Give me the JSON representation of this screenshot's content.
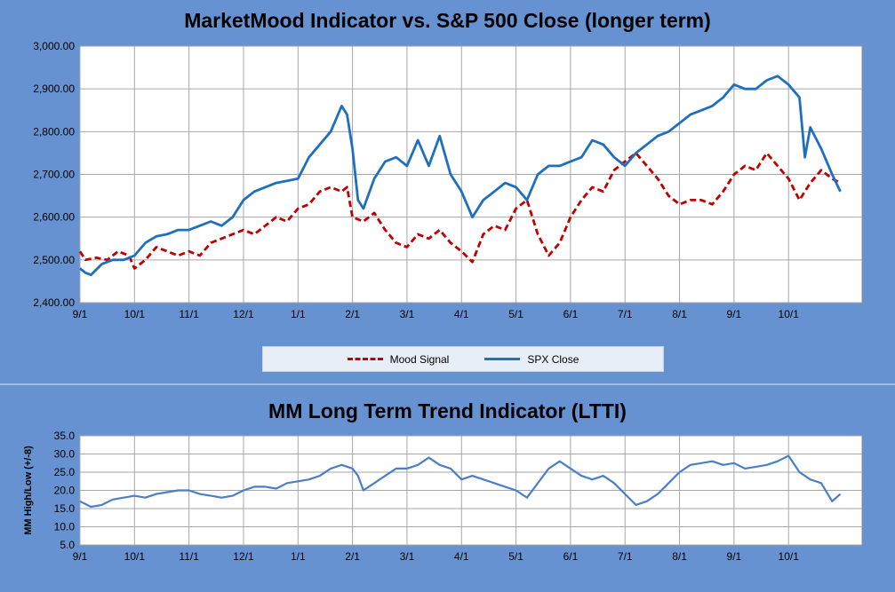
{
  "chart_data": [
    {
      "type": "line",
      "title": "MarketMood Indicator vs. S&P 500 Close (longer term)",
      "xlabel": "",
      "ylabel": "",
      "ylim": [
        2400,
        3000
      ],
      "yticks": [
        "2,400.00",
        "2,500.00",
        "2,600.00",
        "2,700.00",
        "2,800.00",
        "2,900.00",
        "3,000.00"
      ],
      "xticks": [
        "9/1",
        "10/1",
        "11/1",
        "12/1",
        "1/1",
        "2/1",
        "3/1",
        "4/1",
        "5/1",
        "6/1",
        "7/1",
        "8/1",
        "9/1",
        "10/1"
      ],
      "grid": true,
      "legend": "bottom",
      "series": [
        {
          "name": "Mood Signal",
          "color": "#c00000",
          "style": "dashed",
          "points": [
            [
              0,
              2520
            ],
            [
              0.1,
              2500
            ],
            [
              0.3,
              2505
            ],
            [
              0.5,
              2500
            ],
            [
              0.7,
              2520
            ],
            [
              0.9,
              2510
            ],
            [
              1.0,
              2480
            ],
            [
              1.1,
              2490
            ],
            [
              1.2,
              2500
            ],
            [
              1.4,
              2530
            ],
            [
              1.6,
              2520
            ],
            [
              1.8,
              2510
            ],
            [
              2.0,
              2520
            ],
            [
              2.2,
              2510
            ],
            [
              2.4,
              2540
            ],
            [
              2.6,
              2550
            ],
            [
              2.8,
              2560
            ],
            [
              3.0,
              2570
            ],
            [
              3.2,
              2560
            ],
            [
              3.4,
              2580
            ],
            [
              3.6,
              2600
            ],
            [
              3.8,
              2590
            ],
            [
              4.0,
              2620
            ],
            [
              4.2,
              2630
            ],
            [
              4.4,
              2660
            ],
            [
              4.6,
              2670
            ],
            [
              4.8,
              2660
            ],
            [
              4.9,
              2670
            ],
            [
              5.0,
              2600
            ],
            [
              5.2,
              2590
            ],
            [
              5.4,
              2610
            ],
            [
              5.6,
              2570
            ],
            [
              5.8,
              2540
            ],
            [
              6.0,
              2530
            ],
            [
              6.2,
              2560
            ],
            [
              6.4,
              2550
            ],
            [
              6.6,
              2570
            ],
            [
              6.8,
              2540
            ],
            [
              7.0,
              2520
            ],
            [
              7.2,
              2495
            ],
            [
              7.4,
              2560
            ],
            [
              7.6,
              2580
            ],
            [
              7.8,
              2570
            ],
            [
              8.0,
              2620
            ],
            [
              8.2,
              2640
            ],
            [
              8.4,
              2560
            ],
            [
              8.6,
              2510
            ],
            [
              8.8,
              2540
            ],
            [
              9.0,
              2600
            ],
            [
              9.2,
              2640
            ],
            [
              9.4,
              2670
            ],
            [
              9.6,
              2660
            ],
            [
              9.8,
              2710
            ],
            [
              10.0,
              2730
            ],
            [
              10.2,
              2750
            ],
            [
              10.4,
              2720
            ],
            [
              10.6,
              2690
            ],
            [
              10.8,
              2650
            ],
            [
              11.0,
              2630
            ],
            [
              11.2,
              2640
            ],
            [
              11.4,
              2640
            ],
            [
              11.6,
              2630
            ],
            [
              11.8,
              2660
            ],
            [
              12.0,
              2700
            ],
            [
              12.2,
              2720
            ],
            [
              12.4,
              2710
            ],
            [
              12.6,
              2750
            ],
            [
              12.8,
              2720
            ],
            [
              13.0,
              2690
            ],
            [
              13.2,
              2640
            ],
            [
              13.4,
              2680
            ],
            [
              13.6,
              2710
            ],
            [
              13.8,
              2690
            ],
            [
              13.95,
              2680
            ]
          ]
        },
        {
          "name": "SPX Close",
          "color": "#1f6fbf",
          "style": "solid",
          "points": [
            [
              0,
              2480
            ],
            [
              0.1,
              2470
            ],
            [
              0.2,
              2465
            ],
            [
              0.4,
              2490
            ],
            [
              0.6,
              2500
            ],
            [
              0.8,
              2500
            ],
            [
              1.0,
              2510
            ],
            [
              1.2,
              2540
            ],
            [
              1.4,
              2555
            ],
            [
              1.6,
              2560
            ],
            [
              1.8,
              2570
            ],
            [
              2.0,
              2570
            ],
            [
              2.2,
              2580
            ],
            [
              2.4,
              2590
            ],
            [
              2.6,
              2580
            ],
            [
              2.8,
              2600
            ],
            [
              3.0,
              2640
            ],
            [
              3.2,
              2660
            ],
            [
              3.4,
              2670
            ],
            [
              3.6,
              2680
            ],
            [
              3.8,
              2685
            ],
            [
              4.0,
              2690
            ],
            [
              4.2,
              2740
            ],
            [
              4.4,
              2770
            ],
            [
              4.6,
              2800
            ],
            [
              4.8,
              2860
            ],
            [
              4.9,
              2840
            ],
            [
              5.0,
              2760
            ],
            [
              5.1,
              2640
            ],
            [
              5.2,
              2620
            ],
            [
              5.4,
              2690
            ],
            [
              5.6,
              2730
            ],
            [
              5.8,
              2740
            ],
            [
              6.0,
              2720
            ],
            [
              6.2,
              2780
            ],
            [
              6.4,
              2720
            ],
            [
              6.6,
              2790
            ],
            [
              6.8,
              2700
            ],
            [
              7.0,
              2660
            ],
            [
              7.2,
              2600
            ],
            [
              7.4,
              2640
            ],
            [
              7.6,
              2660
            ],
            [
              7.8,
              2680
            ],
            [
              8.0,
              2670
            ],
            [
              8.2,
              2640
            ],
            [
              8.4,
              2700
            ],
            [
              8.6,
              2720
            ],
            [
              8.8,
              2720
            ],
            [
              9.0,
              2730
            ],
            [
              9.2,
              2740
            ],
            [
              9.4,
              2780
            ],
            [
              9.6,
              2770
            ],
            [
              9.8,
              2740
            ],
            [
              10.0,
              2720
            ],
            [
              10.2,
              2750
            ],
            [
              10.4,
              2770
            ],
            [
              10.6,
              2790
            ],
            [
              10.8,
              2800
            ],
            [
              11.0,
              2820
            ],
            [
              11.2,
              2840
            ],
            [
              11.4,
              2850
            ],
            [
              11.6,
              2860
            ],
            [
              11.8,
              2880
            ],
            [
              12.0,
              2910
            ],
            [
              12.2,
              2900
            ],
            [
              12.4,
              2900
            ],
            [
              12.6,
              2920
            ],
            [
              12.8,
              2930
            ],
            [
              13.0,
              2910
            ],
            [
              13.2,
              2880
            ],
            [
              13.3,
              2740
            ],
            [
              13.4,
              2810
            ],
            [
              13.6,
              2760
            ],
            [
              13.8,
              2700
            ],
            [
              13.95,
              2660
            ]
          ]
        }
      ]
    },
    {
      "type": "line",
      "title": "MM Long Term Trend Indicator (LTTI)",
      "xlabel": "",
      "ylabel": "MM High/Low (+/-8)",
      "ylim": [
        5,
        35
      ],
      "yticks": [
        "5.0",
        "10.0",
        "15.0",
        "20.0",
        "25.0",
        "30.0",
        "35.0"
      ],
      "xticks": [
        "9/1",
        "10/1",
        "11/1",
        "12/1",
        "1/1",
        "2/1",
        "3/1",
        "4/1",
        "5/1",
        "6/1",
        "7/1",
        "8/1",
        "9/1",
        "10/1"
      ],
      "grid": true,
      "series": [
        {
          "color": "#4a7fc8",
          "style": "solid",
          "points": [
            [
              0,
              17
            ],
            [
              0.2,
              15.5
            ],
            [
              0.4,
              16
            ],
            [
              0.6,
              17.5
            ],
            [
              0.8,
              18
            ],
            [
              1.0,
              18.5
            ],
            [
              1.2,
              18
            ],
            [
              1.4,
              19
            ],
            [
              1.6,
              19.5
            ],
            [
              1.8,
              20
            ],
            [
              2.0,
              20
            ],
            [
              2.2,
              19
            ],
            [
              2.4,
              18.5
            ],
            [
              2.6,
              18
            ],
            [
              2.8,
              18.5
            ],
            [
              3.0,
              20
            ],
            [
              3.2,
              21
            ],
            [
              3.4,
              21
            ],
            [
              3.6,
              20.5
            ],
            [
              3.8,
              22
            ],
            [
              4.0,
              22.5
            ],
            [
              4.2,
              23
            ],
            [
              4.4,
              24
            ],
            [
              4.6,
              26
            ],
            [
              4.8,
              27
            ],
            [
              5.0,
              26
            ],
            [
              5.1,
              24
            ],
            [
              5.2,
              20
            ],
            [
              5.4,
              22
            ],
            [
              5.6,
              24
            ],
            [
              5.8,
              26
            ],
            [
              6.0,
              26
            ],
            [
              6.2,
              27
            ],
            [
              6.4,
              29
            ],
            [
              6.6,
              27
            ],
            [
              6.8,
              26
            ],
            [
              7.0,
              23
            ],
            [
              7.2,
              24
            ],
            [
              7.4,
              23
            ],
            [
              7.6,
              22
            ],
            [
              7.8,
              21
            ],
            [
              8.0,
              20
            ],
            [
              8.2,
              18
            ],
            [
              8.4,
              22
            ],
            [
              8.6,
              26
            ],
            [
              8.8,
              28
            ],
            [
              9.0,
              26
            ],
            [
              9.2,
              24
            ],
            [
              9.4,
              23
            ],
            [
              9.6,
              24
            ],
            [
              9.8,
              22
            ],
            [
              10.0,
              19
            ],
            [
              10.2,
              16
            ],
            [
              10.4,
              17
            ],
            [
              10.6,
              19
            ],
            [
              10.8,
              22
            ],
            [
              11.0,
              25
            ],
            [
              11.2,
              27
            ],
            [
              11.4,
              27.5
            ],
            [
              11.6,
              28
            ],
            [
              11.8,
              27
            ],
            [
              12.0,
              27.5
            ],
            [
              12.2,
              26
            ],
            [
              12.4,
              26.5
            ],
            [
              12.6,
              27
            ],
            [
              12.8,
              28
            ],
            [
              13.0,
              29.5
            ],
            [
              13.2,
              25
            ],
            [
              13.4,
              23
            ],
            [
              13.6,
              22
            ],
            [
              13.8,
              17
            ],
            [
              13.95,
              19
            ]
          ]
        }
      ]
    }
  ]
}
